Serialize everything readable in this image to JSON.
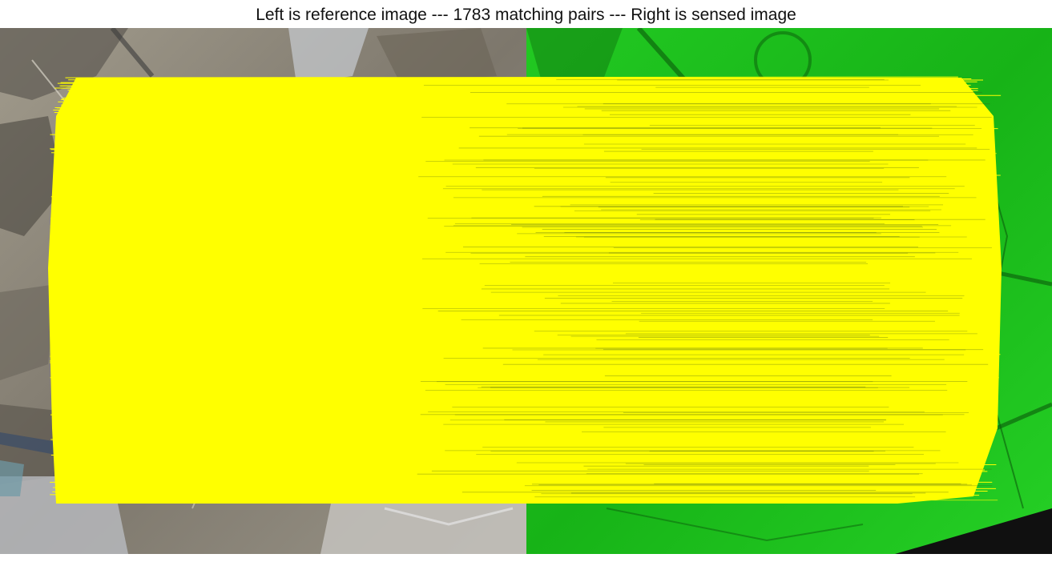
{
  "figure": {
    "title": "Left is reference image --- 1783 matching pairs --- Right is sensed image"
  },
  "left_image": {
    "content": "satellite photograph of hills, fields and villages",
    "tint": "#8f8a7e"
  },
  "right_image": {
    "content": "green-tinted rendering of the same terrain",
    "tint": "#1fc41f"
  },
  "matches": {
    "count": 1783,
    "line_color": "#ffff00"
  }
}
